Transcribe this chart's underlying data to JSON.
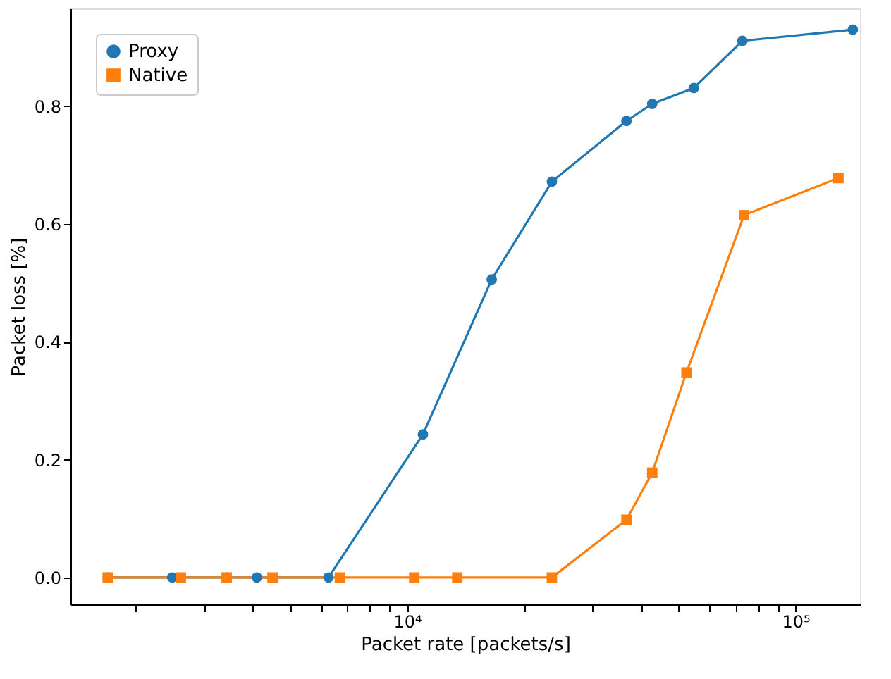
{
  "chart_data": {
    "type": "line",
    "xlabel": "Packet rate [packets/s]",
    "ylabel": "Packet loss [%]",
    "log": "x",
    "grid": false,
    "legend": "top left",
    "xlim": [
      1358,
      146600
    ],
    "ylim": [
      -0.0456,
      0.966
    ],
    "xticks": [
      {
        "value": 2000,
        "label": null
      },
      {
        "value": 3000,
        "label": null
      },
      {
        "value": 4000,
        "label": null
      },
      {
        "value": 5000,
        "label": null
      },
      {
        "value": 6000,
        "label": null
      },
      {
        "value": 7000,
        "label": null
      },
      {
        "value": 8000,
        "label": null
      },
      {
        "value": 9000,
        "label": null
      },
      {
        "value": 10000,
        "label": "10⁴"
      },
      {
        "value": 20000,
        "label": null
      },
      {
        "value": 30000,
        "label": null
      },
      {
        "value": 40000,
        "label": null
      },
      {
        "value": 50000,
        "label": null
      },
      {
        "value": 60000,
        "label": null
      },
      {
        "value": 70000,
        "label": null
      },
      {
        "value": 80000,
        "label": null
      },
      {
        "value": 90000,
        "label": null
      },
      {
        "value": 100000,
        "label": "10⁵"
      }
    ],
    "yticks": [
      {
        "value": 0,
        "label": "0.0"
      },
      {
        "value": 0.2,
        "label": "0.2"
      },
      {
        "value": 0.4,
        "label": "0.4"
      },
      {
        "value": 0.6,
        "label": "0.6"
      },
      {
        "value": 0.8,
        "label": "0.8"
      }
    ],
    "line_style": "solid",
    "series": [
      {
        "name": "Proxy",
        "color": "#1f77b4",
        "marker": "circle",
        "x": [
          1694,
          2483,
          3428,
          4100,
          6270,
          10980,
          16510,
          23590,
          36700,
          42760,
          54700,
          73000,
          140500
        ],
        "values": [
          0,
          0,
          0,
          0,
          0,
          0.243,
          0.506,
          0.672,
          0.775,
          0.804,
          0.831,
          0.911,
          0.93
        ]
      },
      {
        "name": "Native",
        "color": "#ff7f0e",
        "marker": "square",
        "x": [
          1694,
          2612,
          3428,
          4500,
          6710,
          10430,
          13460,
          23590,
          36700,
          42760,
          52400,
          73700,
          129000
        ],
        "values": [
          0,
          0,
          0,
          0,
          0,
          0,
          0,
          0,
          0.098,
          0.178,
          0.348,
          0.615,
          0.678
        ]
      }
    ]
  }
}
